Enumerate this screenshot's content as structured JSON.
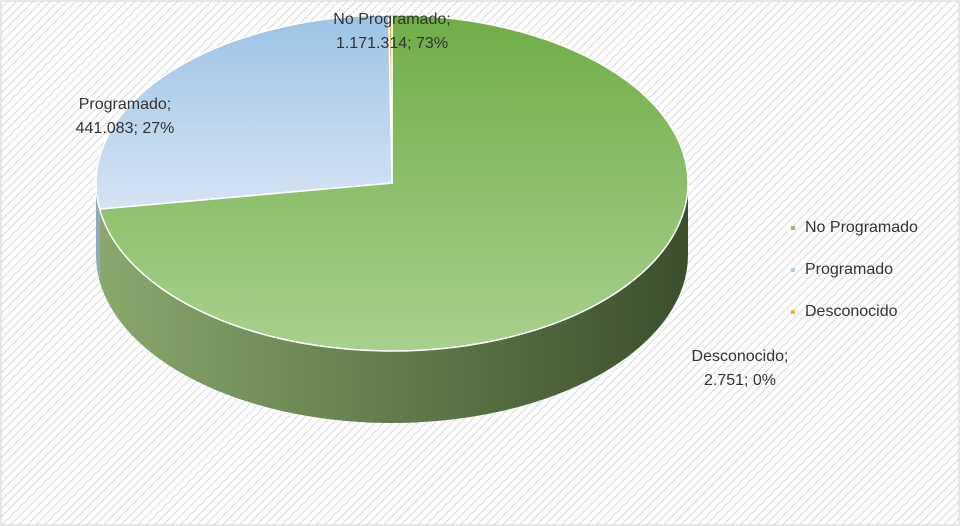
{
  "chart_data": {
    "type": "pie",
    "categories": [
      "No Programado",
      "Programado",
      "Desconocido"
    ],
    "values": [
      1171314,
      441083,
      2751
    ],
    "label_names": [
      "No Programado;",
      "Programado;",
      "Desconocido;"
    ],
    "value_labels": [
      "1.171.314; 73%",
      "441.083; 27%",
      "2.751; 0%"
    ],
    "colors": [
      "#8fbf5f",
      "#b4cce8",
      "#f2b233"
    ],
    "legend": "right"
  }
}
